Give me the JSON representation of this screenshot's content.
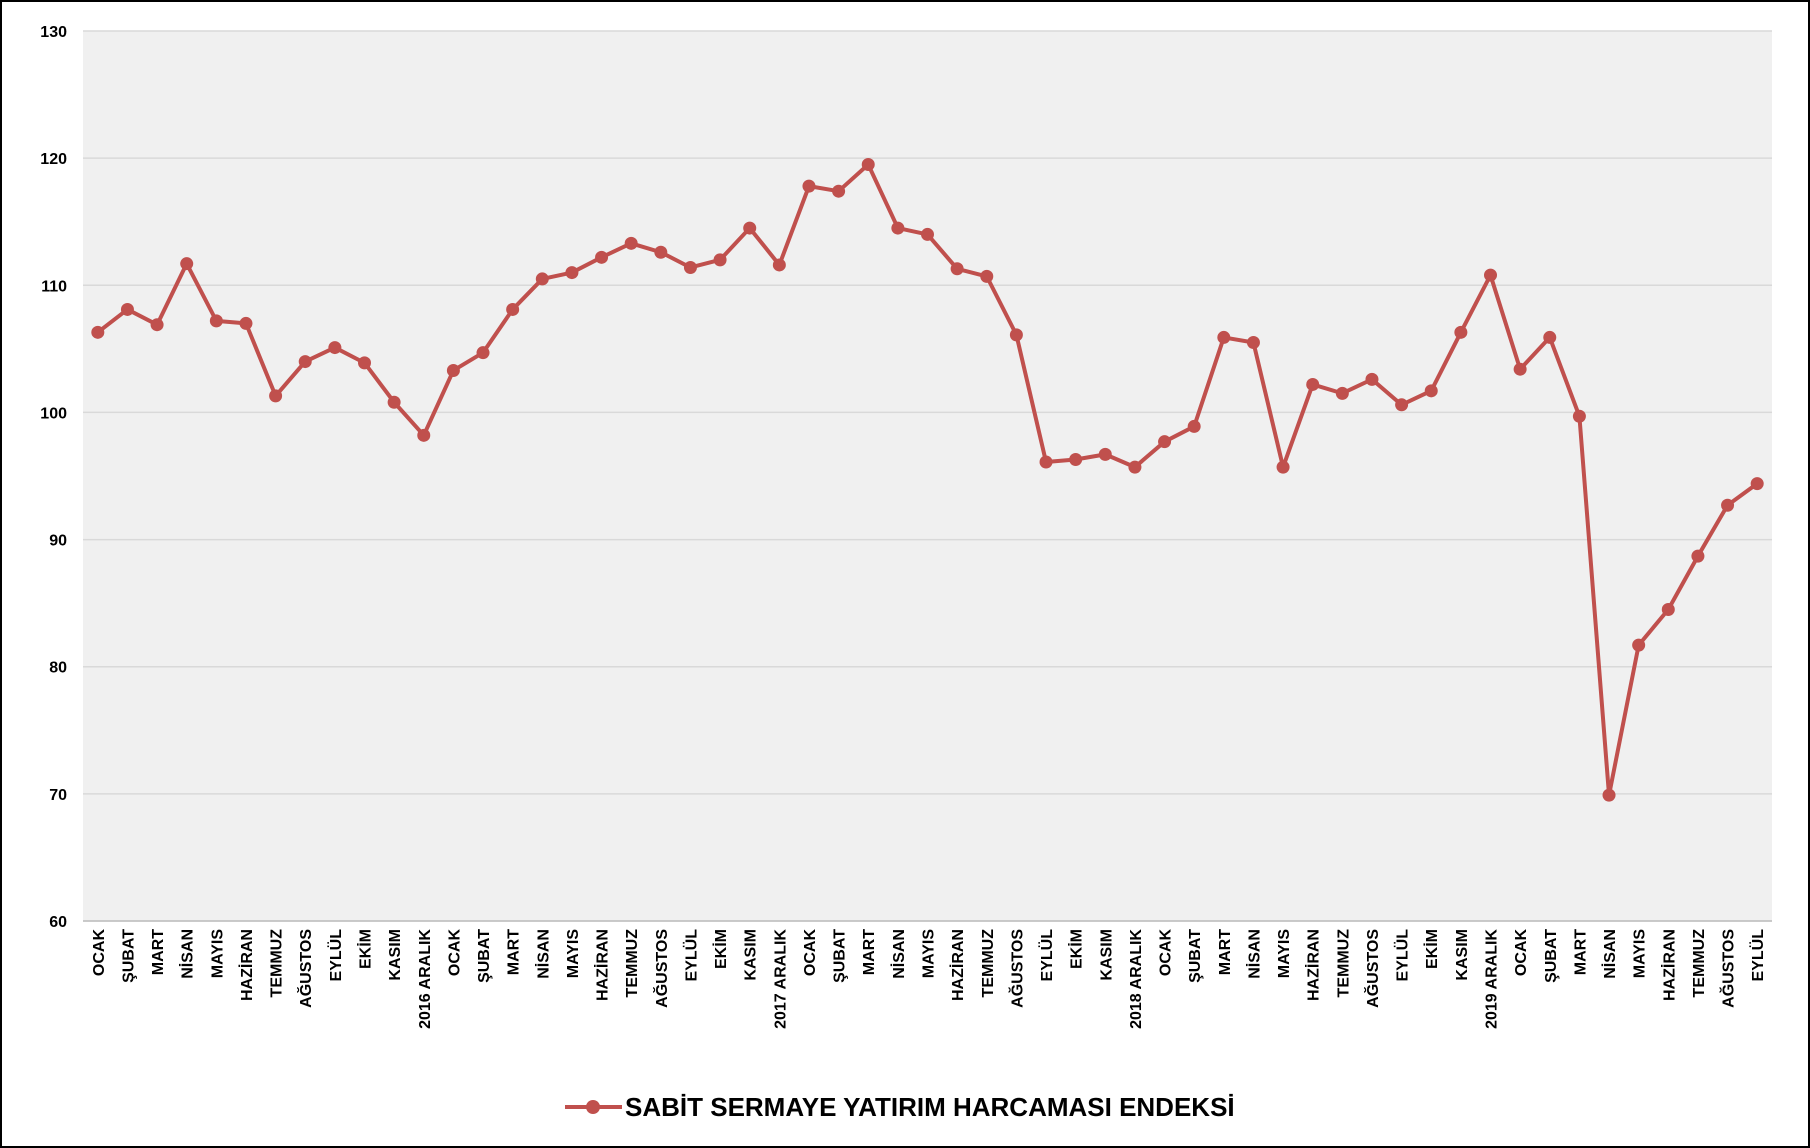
{
  "chart_data": {
    "type": "line",
    "categories": [
      "OCAK",
      "ŞUBAT",
      "MART",
      "NİSAN",
      "MAYIS",
      "HAZİRAN",
      "TEMMUZ",
      "AĞUSTOS",
      "EYLÜL",
      "EKİM",
      "KASIM",
      "2016 ARALIK",
      "OCAK",
      "ŞUBAT",
      "MART",
      "NİSAN",
      "MAYIS",
      "HAZİRAN",
      "TEMMUZ",
      "AĞUSTOS",
      "EYLÜL",
      "EKİM",
      "KASIM",
      "2017 ARALIK",
      "OCAK",
      "ŞUBAT",
      "MART",
      "NİSAN",
      "MAYIS",
      "HAZİRAN",
      "TEMMUZ",
      "AĞUSTOS",
      "EYLÜL",
      "EKİM",
      "KASIM",
      "2018 ARALIK",
      "OCAK",
      "ŞUBAT",
      "MART",
      "NİSAN",
      "MAYIS",
      "HAZİRAN",
      "TEMMUZ",
      "AĞUSTOS",
      "EYLÜL",
      "EKİM",
      "KASIM",
      "2019 ARALIK",
      "OCAK",
      "ŞUBAT",
      "MART",
      "NİSAN",
      "MAYIS",
      "HAZİRAN",
      "TEMMUZ",
      "AĞUSTOS",
      "EYLÜL"
    ],
    "series": [
      {
        "name": "SABİT SERMAYE YATIRIM HARCAMASI ENDEKSİ",
        "color": "#c0504d",
        "values": [
          106.3,
          108.1,
          106.9,
          111.7,
          107.2,
          107.0,
          101.3,
          104.0,
          105.1,
          103.9,
          100.8,
          98.2,
          103.3,
          104.7,
          108.1,
          110.5,
          111.0,
          112.2,
          113.3,
          112.6,
          111.4,
          112.0,
          114.5,
          111.6,
          117.8,
          117.4,
          119.5,
          114.5,
          114.0,
          111.3,
          110.7,
          106.1,
          96.1,
          96.3,
          96.7,
          95.7,
          97.7,
          98.9,
          105.9,
          105.5,
          95.7,
          102.2,
          101.5,
          102.6,
          100.6,
          101.7,
          106.3,
          110.8,
          103.4,
          105.9,
          99.7,
          69.9,
          81.7,
          84.5,
          88.7,
          92.7,
          94.4
        ]
      }
    ],
    "ylim": [
      60,
      130
    ],
    "yticks": [
      60,
      70,
      80,
      90,
      100,
      110,
      120,
      130
    ],
    "grid": true,
    "legend": "bottom"
  }
}
